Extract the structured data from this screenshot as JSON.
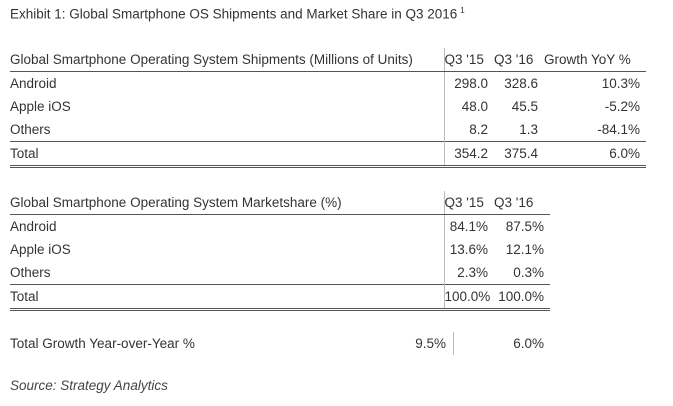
{
  "title": "Exhibit 1: Global Smartphone OS Shipments and Market Share in Q3 2016",
  "title_footnote": "1",
  "shipments": {
    "headers": [
      "Global Smartphone Operating System Shipments (Millions of Units)",
      "Q3 '15",
      "Q3 '16",
      "Growth YoY %"
    ],
    "rows": [
      [
        "Android",
        "298.0",
        "328.6",
        "10.3%"
      ],
      [
        "Apple iOS",
        "48.0",
        "45.5",
        "-5.2%"
      ],
      [
        "Others",
        "8.2",
        "1.3",
        "-84.1%"
      ]
    ],
    "total": [
      "Total",
      "354.2",
      "375.4",
      "6.0%"
    ]
  },
  "marketshare": {
    "headers": [
      "Global Smartphone Operating System Marketshare (%)",
      "Q3 '15",
      "Q3 '16"
    ],
    "rows": [
      [
        "Android",
        "84.1%",
        "87.5%"
      ],
      [
        "Apple iOS",
        "13.6%",
        "12.1%"
      ],
      [
        "Others",
        "2.3%",
        "0.3%"
      ]
    ],
    "total": [
      "Total",
      "100.0%",
      "100.0%"
    ]
  },
  "growth": {
    "label": "Total Growth Year-over-Year %",
    "q3_15": "9.5%",
    "q3_16": "6.0%"
  },
  "source": "Source: Strategy Analytics"
}
